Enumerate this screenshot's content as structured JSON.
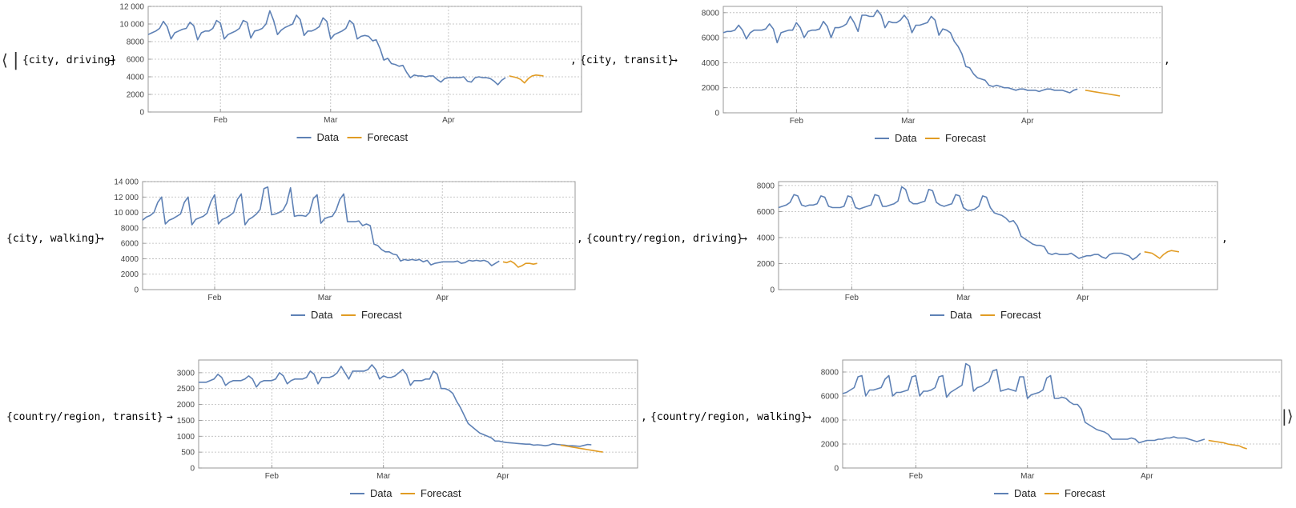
{
  "assoc": {
    "open": "⟨",
    "open_bar": "|",
    "close": "|⟩",
    "arrow": "→",
    "comma": ","
  },
  "colors": {
    "data": "#5E81B5",
    "forecast": "#E19C24",
    "frame": "#999999",
    "grid": "#b8b8b8"
  },
  "legend": {
    "data": "Data",
    "forecast": "Forecast"
  },
  "charts": [
    {
      "key": "{city, driving}"
    },
    {
      "key": "{city, transit}"
    },
    {
      "key": "{city, walking}"
    },
    {
      "key": "{country/region, driving}"
    },
    {
      "key": "{country/region, transit}"
    },
    {
      "key": "{country/region, walking}"
    }
  ],
  "chart_data": [
    {
      "type": "line",
      "title": "{city, driving}",
      "x_start": "2020-01-13",
      "x_end": "2020-05-06",
      "xticks": [
        "Feb",
        "Mar",
        "Apr"
      ],
      "yticks": [
        0,
        2000,
        4000,
        6000,
        8000,
        10000,
        12000
      ],
      "ytick_labels": [
        "0",
        "2000",
        "4000",
        "6000",
        "8000",
        "10 000",
        "12 000"
      ],
      "ylim": [
        0,
        12000
      ],
      "grid": true,
      "legend_position": "bottom",
      "series": [
        {
          "name": "Data",
          "x_start": "2020-01-13",
          "values": [
            8800,
            9000,
            9200,
            9500,
            10300,
            9700,
            8300,
            9000,
            9200,
            9400,
            9500,
            10200,
            9800,
            8200,
            9000,
            9200,
            9200,
            9500,
            10400,
            10100,
            8300,
            8800,
            9000,
            9200,
            9500,
            10400,
            10200,
            8400,
            9200,
            9300,
            9500,
            10000,
            11500,
            10400,
            8800,
            9300,
            9600,
            9800,
            10000,
            11000,
            10500,
            8700,
            9200,
            9200,
            9400,
            9700,
            10700,
            10300,
            8300,
            8800,
            9000,
            9200,
            9500,
            10400,
            10000,
            8300,
            8600,
            8700,
            8600,
            8100,
            8200,
            7200,
            5900,
            6100,
            5500,
            5400,
            5200,
            5300,
            4500,
            3900,
            4200,
            4100,
            4100,
            4000,
            4100,
            4100,
            3700,
            3400,
            3800,
            3900,
            3900,
            3900,
            3900,
            4000,
            3500,
            3400,
            3900,
            4000,
            3900,
            3900,
            3800,
            3500,
            3100,
            3600,
            3900
          ]
        },
        {
          "name": "Forecast",
          "x_start": "2020-04-17",
          "values": [
            4100,
            4000,
            3900,
            3700,
            3300,
            3800,
            4100,
            4200,
            4150,
            4100
          ]
        }
      ]
    },
    {
      "type": "line",
      "title": "{city, transit}",
      "x_start": "2020-01-13",
      "x_end": "2020-05-06",
      "xticks": [
        "Feb",
        "Mar",
        "Apr"
      ],
      "yticks": [
        0,
        2000,
        4000,
        6000,
        8000
      ],
      "ytick_labels": [
        "0",
        "2000",
        "4000",
        "6000",
        "8000"
      ],
      "ylim": [
        0,
        8500
      ],
      "grid": true,
      "legend_position": "bottom",
      "series": [
        {
          "name": "Data",
          "x_start": "2020-01-13",
          "values": [
            6400,
            6500,
            6500,
            6600,
            7000,
            6600,
            5900,
            6400,
            6600,
            6600,
            6600,
            6700,
            7100,
            6700,
            5600,
            6400,
            6500,
            6600,
            6600,
            7200,
            6800,
            6000,
            6500,
            6600,
            6600,
            6700,
            7300,
            6900,
            6000,
            6800,
            6800,
            6900,
            7100,
            7700,
            7200,
            6500,
            7800,
            7800,
            7700,
            7700,
            8200,
            7800,
            6800,
            7300,
            7200,
            7200,
            7400,
            7800,
            7400,
            6400,
            7000,
            7000,
            7100,
            7200,
            7700,
            7400,
            6200,
            6700,
            6600,
            6400,
            5700,
            5300,
            4700,
            3700,
            3600,
            3100,
            2800,
            2700,
            2600,
            2200,
            2100,
            2200,
            2100,
            2000,
            2000,
            1900,
            1800,
            1900,
            1900,
            1800,
            1800,
            1800,
            1700,
            1800,
            1900,
            1900,
            1800,
            1800,
            1800,
            1700,
            1600,
            1800,
            1900
          ]
        },
        {
          "name": "Forecast",
          "x_start": "2020-04-16",
          "values": [
            1800,
            1750,
            1700,
            1650,
            1600,
            1550,
            1500,
            1450,
            1400,
            1350
          ]
        }
      ]
    },
    {
      "type": "line",
      "title": "{city, walking}",
      "x_start": "2020-01-13",
      "x_end": "2020-05-06",
      "xticks": [
        "Feb",
        "Mar",
        "Apr"
      ],
      "yticks": [
        0,
        2000,
        4000,
        6000,
        8000,
        10000,
        12000,
        14000
      ],
      "ytick_labels": [
        "0",
        "2000",
        "4000",
        "6000",
        "8000",
        "10 000",
        "12 000",
        "14 000"
      ],
      "ylim": [
        0,
        14000
      ],
      "grid": true,
      "legend_position": "bottom",
      "series": [
        {
          "name": "Data",
          "x_start": "2020-01-13",
          "values": [
            9000,
            9400,
            9600,
            10000,
            11300,
            12000,
            8500,
            9000,
            9200,
            9500,
            9800,
            11300,
            12000,
            8400,
            9100,
            9300,
            9500,
            9900,
            11400,
            12300,
            8500,
            9100,
            9300,
            9600,
            10000,
            11700,
            12400,
            8400,
            9100,
            9400,
            9800,
            10400,
            13100,
            13300,
            9700,
            9800,
            10000,
            10300,
            11200,
            13200,
            9500,
            9600,
            9600,
            9500,
            10000,
            11800,
            12300,
            8600,
            9200,
            9400,
            9500,
            10300,
            11700,
            12400,
            8800,
            8800,
            8800,
            8900,
            8300,
            8500,
            8300,
            5900,
            5700,
            5200,
            4900,
            4900,
            4600,
            4500,
            3700,
            3900,
            3800,
            3900,
            3800,
            3900,
            3600,
            3800,
            3200,
            3400,
            3500,
            3600,
            3600,
            3600,
            3600,
            3700,
            3400,
            3500,
            3800,
            3700,
            3800,
            3700,
            3800,
            3600,
            3100,
            3400,
            3700
          ]
        },
        {
          "name": "Forecast",
          "x_start": "2020-04-17",
          "values": [
            3600,
            3500,
            3700,
            3400,
            2900,
            3100,
            3400,
            3400,
            3300,
            3400
          ]
        }
      ]
    },
    {
      "type": "line",
      "title": "{country/region, driving}",
      "x_start": "2020-01-13",
      "x_end": "2020-05-06",
      "xticks": [
        "Feb",
        "Mar",
        "Apr"
      ],
      "yticks": [
        0,
        2000,
        4000,
        6000,
        8000
      ],
      "ytick_labels": [
        "0",
        "2000",
        "4000",
        "6000",
        "8000"
      ],
      "ylim": [
        0,
        8300
      ],
      "grid": true,
      "legend_position": "bottom",
      "series": [
        {
          "name": "Data",
          "x_start": "2020-01-13",
          "values": [
            6300,
            6400,
            6500,
            6700,
            7300,
            7200,
            6500,
            6400,
            6500,
            6500,
            6600,
            7200,
            7100,
            6400,
            6300,
            6300,
            6300,
            6400,
            7200,
            7100,
            6300,
            6200,
            6300,
            6400,
            6500,
            7300,
            7200,
            6400,
            6400,
            6500,
            6600,
            6800,
            7900,
            7700,
            6800,
            6600,
            6600,
            6700,
            6800,
            7700,
            7600,
            6700,
            6500,
            6400,
            6500,
            6600,
            7300,
            7200,
            6300,
            6100,
            6100,
            6200,
            6400,
            7200,
            7100,
            6300,
            5900,
            5800,
            5700,
            5500,
            5200,
            5300,
            4900,
            4100,
            3900,
            3700,
            3500,
            3400,
            3400,
            3300,
            2800,
            2700,
            2800,
            2700,
            2700,
            2700,
            2800,
            2600,
            2400,
            2500,
            2600,
            2600,
            2700,
            2700,
            2500,
            2400,
            2700,
            2800,
            2800,
            2800,
            2700,
            2600,
            2300,
            2500,
            2800
          ]
        },
        {
          "name": "Forecast",
          "x_start": "2020-04-17",
          "values": [
            2900,
            2850,
            2800,
            2600,
            2400,
            2700,
            2900,
            3000,
            2950,
            2900
          ]
        }
      ]
    },
    {
      "type": "line",
      "title": "{country/region, transit}",
      "x_start": "2020-01-13",
      "x_end": "2020-05-06",
      "xticks": [
        "Feb",
        "Mar",
        "Apr"
      ],
      "yticks": [
        0,
        500,
        1000,
        1500,
        2000,
        2500,
        3000
      ],
      "ytick_labels": [
        "0",
        "500",
        "1000",
        "1500",
        "2000",
        "2500",
        "3000"
      ],
      "ylim": [
        0,
        3400
      ],
      "grid": true,
      "legend_position": "bottom",
      "series": [
        {
          "name": "Data",
          "x_start": "2020-01-13",
          "values": [
            2700,
            2700,
            2700,
            2750,
            2800,
            2950,
            2850,
            2600,
            2700,
            2750,
            2750,
            2750,
            2800,
            2900,
            2800,
            2550,
            2700,
            2750,
            2750,
            2750,
            2800,
            3000,
            2900,
            2650,
            2750,
            2800,
            2800,
            2800,
            2850,
            3050,
            2950,
            2650,
            2850,
            2850,
            2850,
            2900,
            3000,
            3200,
            3000,
            2800,
            3050,
            3050,
            3050,
            3050,
            3100,
            3250,
            3100,
            2800,
            2900,
            2850,
            2850,
            2900,
            3000,
            3100,
            2950,
            2600,
            2750,
            2750,
            2750,
            2800,
            2800,
            3050,
            2950,
            2500,
            2500,
            2450,
            2350,
            2100,
            1900,
            1650,
            1400,
            1300,
            1200,
            1100,
            1050,
            1000,
            950,
            850,
            850,
            820,
            800,
            790,
            780,
            770,
            760,
            750,
            750,
            720,
            730,
            720,
            700,
            720,
            760,
            740,
            730,
            720,
            700,
            700,
            690,
            680,
            710,
            740,
            730
          ]
        },
        {
          "name": "Forecast",
          "x_start": "2020-04-16",
          "values": [
            720,
            700,
            680,
            660,
            640,
            620,
            600,
            580,
            560,
            540,
            520,
            500
          ]
        }
      ]
    },
    {
      "type": "line",
      "title": "{country/region, walking}",
      "x_start": "2020-01-13",
      "x_end": "2020-05-06",
      "xticks": [
        "Feb",
        "Mar",
        "Apr"
      ],
      "yticks": [
        0,
        2000,
        4000,
        6000,
        8000
      ],
      "ytick_labels": [
        "0",
        "2000",
        "4000",
        "6000",
        "8000"
      ],
      "ylim": [
        0,
        9000
      ],
      "grid": true,
      "legend_position": "bottom",
      "series": [
        {
          "name": "Data",
          "x_start": "2020-01-13",
          "values": [
            6200,
            6300,
            6500,
            6700,
            7600,
            7700,
            6000,
            6500,
            6500,
            6600,
            6700,
            7400,
            7700,
            6000,
            6300,
            6300,
            6400,
            6500,
            7600,
            7700,
            6000,
            6400,
            6400,
            6500,
            6700,
            7600,
            7700,
            5900,
            6300,
            6500,
            6700,
            6900,
            8700,
            8500,
            6400,
            6700,
            6800,
            7000,
            7200,
            8100,
            8200,
            6400,
            6500,
            6600,
            6500,
            6400,
            7600,
            7600,
            5800,
            6100,
            6200,
            6300,
            6500,
            7500,
            7700,
            5800,
            5800,
            5900,
            5800,
            5500,
            5300,
            5300,
            4900,
            3800,
            3600,
            3400,
            3200,
            3100,
            3000,
            2800,
            2400,
            2400,
            2400,
            2400,
            2400,
            2500,
            2400,
            2100,
            2200,
            2300,
            2300,
            2300,
            2400,
            2400,
            2500,
            2500,
            2600,
            2500,
            2500,
            2500,
            2400,
            2300,
            2200,
            2300,
            2400
          ]
        },
        {
          "name": "Forecast",
          "x_start": "2020-04-17",
          "values": [
            2300,
            2250,
            2200,
            2150,
            2100,
            2000,
            1950,
            1900,
            1850,
            1700,
            1600
          ]
        }
      ]
    }
  ]
}
